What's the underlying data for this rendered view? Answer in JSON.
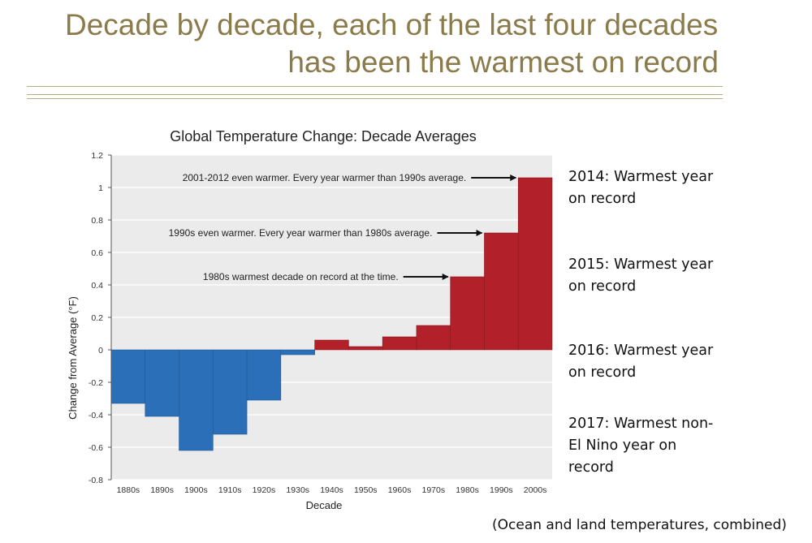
{
  "slide": {
    "title_line1": "Decade by decade, each of the last four decades",
    "title_line2": "has been the warmest on record"
  },
  "side_notes": [
    "2014: Warmest year on record",
    "2015: Warmest year on record",
    "2016: Warmest year on record",
    "2017: Warmest non-El Nino year on record"
  ],
  "footnote": "(Ocean and land temperatures, combined)",
  "colors": {
    "positive": "#b2202a",
    "negative": "#2a6fb8",
    "title": "#8b7b4a"
  },
  "chart_data": {
    "type": "bar",
    "title": "Global Temperature Change: Decade Averages",
    "xlabel": "Decade",
    "ylabel": "Change from Average (°F)",
    "ylim": [
      -0.8,
      1.2
    ],
    "yticks": [
      "1.2",
      "1",
      "0.8",
      "0.6",
      "0.4",
      "0.2",
      "0",
      "-0.2",
      "-0.4",
      "-0.6",
      "-0.8"
    ],
    "grid": true,
    "categories": [
      "1880s",
      "1890s",
      "1900s",
      "1910s",
      "1920s",
      "1930s",
      "1940s",
      "1950s",
      "1960s",
      "1970s",
      "1980s",
      "1990s",
      "2000s"
    ],
    "values": [
      -0.33,
      -0.41,
      -0.62,
      -0.52,
      -0.31,
      -0.03,
      0.06,
      0.02,
      0.08,
      0.15,
      0.45,
      0.72,
      1.06
    ],
    "annotations": [
      {
        "text": "2001-2012 even warmer. Every year warmer than 1990s average.",
        "target": "2000s"
      },
      {
        "text": "1990s even warmer. Every year warmer than 1980s average.",
        "target": "1990s"
      },
      {
        "text": "1980s warmest decade on record at the time.",
        "target": "1980s"
      }
    ]
  }
}
